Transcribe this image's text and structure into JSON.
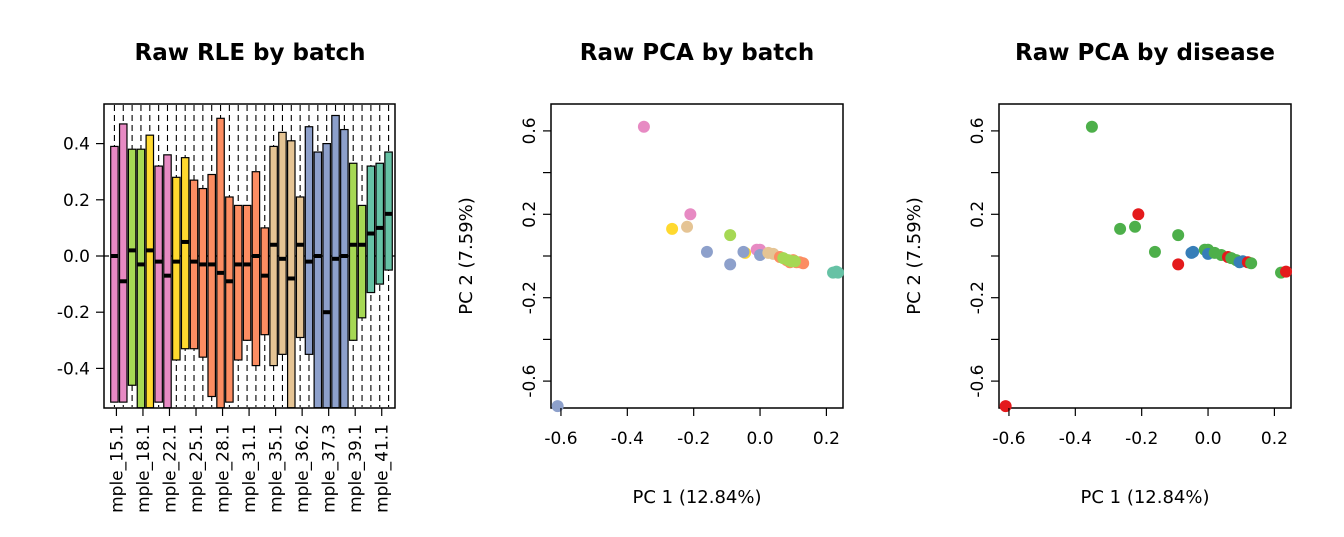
{
  "palette": {
    "rle": [
      "#E78AC3",
      "#A6D854",
      "#FFD92F",
      "#E78AC3",
      "#FFD92F",
      "#FC8D62",
      "#FC8D62",
      "#E5C494",
      "#8DA0CB",
      "#A6D854",
      "#66C2A5"
    ],
    "batch": {
      "pink": "#E78AC3",
      "yellow": "#FFD92F",
      "tan": "#E5C494",
      "blue": "#8DA0CB",
      "green": "#A6D854",
      "orange": "#FC8D62",
      "teal": "#66C2A5"
    },
    "disease": {
      "green": "#4DAF4A",
      "red": "#E41A1C",
      "blue": "#377EB8"
    }
  },
  "chart_data": [
    {
      "type": "boxplot",
      "title": "Raw RLE by batch",
      "xlabel": "",
      "ylabel": "",
      "ylim": [
        -0.54,
        0.54
      ],
      "yticks": [
        "-0.4",
        "-0.2",
        "0.0",
        "0.2",
        "0.4"
      ],
      "ytick_values": [
        -0.4,
        -0.2,
        0.0,
        0.2,
        0.4
      ],
      "reference_line": 0,
      "xtick_labels": [
        "mple_15.1",
        "mple_18.1",
        "mple_22.1",
        "mple_25.1",
        "mple_28.1",
        "mple_31.1",
        "mple_35.1",
        "mple_36.2",
        "mple_37.3",
        "mple_39.1",
        "mple_41.1"
      ],
      "boxes": [
        {
          "lo": -0.52,
          "hi": 0.39,
          "med": 0.0,
          "color": 0
        },
        {
          "lo": -0.52,
          "hi": 0.47,
          "med": -0.09,
          "color": 0
        },
        {
          "lo": -0.46,
          "hi": 0.38,
          "med": 0.02,
          "color": 1
        },
        {
          "lo": -0.54,
          "hi": 0.38,
          "med": -0.03,
          "color": 1
        },
        {
          "lo": -0.54,
          "hi": 0.43,
          "med": 0.02,
          "color": 2
        },
        {
          "lo": -0.52,
          "hi": 0.32,
          "med": -0.02,
          "color": 3
        },
        {
          "lo": -0.54,
          "hi": 0.36,
          "med": -0.07,
          "color": 3
        },
        {
          "lo": -0.37,
          "hi": 0.28,
          "med": -0.02,
          "color": 4
        },
        {
          "lo": -0.33,
          "hi": 0.35,
          "med": 0.05,
          "color": 4
        },
        {
          "lo": -0.33,
          "hi": 0.27,
          "med": -0.02,
          "color": 5
        },
        {
          "lo": -0.36,
          "hi": 0.24,
          "med": -0.03,
          "color": 5
        },
        {
          "lo": -0.5,
          "hi": 0.29,
          "med": -0.03,
          "color": 5
        },
        {
          "lo": -0.54,
          "hi": 0.49,
          "med": -0.06,
          "color": 6
        },
        {
          "lo": -0.52,
          "hi": 0.21,
          "med": -0.09,
          "color": 6
        },
        {
          "lo": -0.37,
          "hi": 0.18,
          "med": -0.03,
          "color": 6
        },
        {
          "lo": -0.3,
          "hi": 0.18,
          "med": -0.03,
          "color": 6
        },
        {
          "lo": -0.39,
          "hi": 0.3,
          "med": 0.0,
          "color": 6
        },
        {
          "lo": -0.28,
          "hi": 0.1,
          "med": -0.07,
          "color": 6
        },
        {
          "lo": -0.39,
          "hi": 0.39,
          "med": 0.04,
          "color": 7
        },
        {
          "lo": -0.35,
          "hi": 0.44,
          "med": -0.01,
          "color": 7
        },
        {
          "lo": -0.54,
          "hi": 0.41,
          "med": -0.08,
          "color": 7
        },
        {
          "lo": -0.29,
          "hi": 0.21,
          "med": 0.04,
          "color": 7
        },
        {
          "lo": -0.35,
          "hi": 0.46,
          "med": -0.02,
          "color": 8
        },
        {
          "lo": -0.54,
          "hi": 0.37,
          "med": 0.0,
          "color": 8
        },
        {
          "lo": -0.54,
          "hi": 0.4,
          "med": -0.2,
          "color": 8
        },
        {
          "lo": -0.54,
          "hi": 0.5,
          "med": -0.01,
          "color": 8
        },
        {
          "lo": -0.54,
          "hi": 0.45,
          "med": 0.0,
          "color": 8
        },
        {
          "lo": -0.3,
          "hi": 0.33,
          "med": 0.04,
          "color": 9
        },
        {
          "lo": -0.22,
          "hi": 0.18,
          "med": 0.04,
          "color": 9
        },
        {
          "lo": -0.13,
          "hi": 0.32,
          "med": 0.08,
          "color": 10
        },
        {
          "lo": -0.1,
          "hi": 0.33,
          "med": 0.1,
          "color": 10
        },
        {
          "lo": -0.05,
          "hi": 0.37,
          "med": 0.15,
          "color": 10
        }
      ]
    },
    {
      "type": "scatter",
      "title": "Raw PCA by batch",
      "xlabel": "PC 1 (12.84%)",
      "ylabel": "PC 2 (7.59%)",
      "xlim": [
        -0.63,
        0.25
      ],
      "ylim": [
        -0.75,
        0.67
      ],
      "xticks": [
        "-0.6",
        "-0.4",
        "-0.2",
        "0.0",
        "0.2"
      ],
      "xtick_values": [
        -0.6,
        -0.4,
        -0.2,
        0.0,
        0.2
      ],
      "yticks": [
        "-0.6",
        "-0.2",
        "0.2",
        "0.6"
      ],
      "ytick_values": [
        -0.6,
        -0.2,
        0.2,
        0.6
      ],
      "yminor": [
        -0.4,
        0.0,
        0.4
      ],
      "points": [
        {
          "x": -0.35,
          "y": 0.62,
          "c": "pink"
        },
        {
          "x": -0.21,
          "y": 0.2,
          "c": "pink"
        },
        {
          "x": -0.22,
          "y": 0.14,
          "c": "tan"
        },
        {
          "x": -0.265,
          "y": 0.13,
          "c": "yellow"
        },
        {
          "x": -0.09,
          "y": 0.1,
          "c": "green"
        },
        {
          "x": -0.16,
          "y": 0.02,
          "c": "blue"
        },
        {
          "x": -0.09,
          "y": -0.04,
          "c": "blue"
        },
        {
          "x": -0.045,
          "y": 0.015,
          "c": "yellow"
        },
        {
          "x": -0.05,
          "y": 0.02,
          "c": "blue"
        },
        {
          "x": -0.01,
          "y": 0.03,
          "c": "pink"
        },
        {
          "x": 0.0,
          "y": 0.03,
          "c": "pink"
        },
        {
          "x": 0.0,
          "y": 0.005,
          "c": "blue"
        },
        {
          "x": 0.025,
          "y": 0.015,
          "c": "tan"
        },
        {
          "x": 0.04,
          "y": 0.01,
          "c": "tan"
        },
        {
          "x": 0.06,
          "y": -0.005,
          "c": "orange"
        },
        {
          "x": 0.08,
          "y": -0.02,
          "c": "orange"
        },
        {
          "x": 0.09,
          "y": -0.03,
          "c": "orange"
        },
        {
          "x": 0.1,
          "y": -0.02,
          "c": "orange"
        },
        {
          "x": 0.11,
          "y": -0.03,
          "c": "orange"
        },
        {
          "x": 0.12,
          "y": -0.03,
          "c": "orange"
        },
        {
          "x": 0.13,
          "y": -0.035,
          "c": "orange"
        },
        {
          "x": 0.07,
          "y": -0.01,
          "c": "green"
        },
        {
          "x": 0.085,
          "y": -0.02,
          "c": "green"
        },
        {
          "x": 0.095,
          "y": -0.025,
          "c": "green"
        },
        {
          "x": 0.105,
          "y": -0.025,
          "c": "green"
        },
        {
          "x": 0.22,
          "y": -0.08,
          "c": "teal"
        },
        {
          "x": 0.23,
          "y": -0.075,
          "c": "teal"
        },
        {
          "x": 0.235,
          "y": -0.08,
          "c": "teal"
        },
        {
          "x": -0.61,
          "y": -0.72,
          "c": "blue"
        }
      ]
    },
    {
      "type": "scatter",
      "title": "Raw PCA by disease",
      "xlabel": "PC 1 (12.84%)",
      "ylabel": "PC 2 (7.59%)",
      "xlim": [
        -0.63,
        0.25
      ],
      "ylim": [
        -0.75,
        0.67
      ],
      "xticks": [
        "-0.6",
        "-0.4",
        "-0.2",
        "0.0",
        "0.2"
      ],
      "xtick_values": [
        -0.6,
        -0.4,
        -0.2,
        0.0,
        0.2
      ],
      "yticks": [
        "-0.6",
        "-0.2",
        "0.2",
        "0.6"
      ],
      "ytick_values": [
        -0.6,
        -0.2,
        0.2,
        0.6
      ],
      "yminor": [
        -0.4,
        0.0,
        0.4
      ],
      "points": [
        {
          "x": -0.35,
          "y": 0.62,
          "c": "green"
        },
        {
          "x": -0.21,
          "y": 0.2,
          "c": "red"
        },
        {
          "x": -0.22,
          "y": 0.14,
          "c": "green"
        },
        {
          "x": -0.265,
          "y": 0.13,
          "c": "green"
        },
        {
          "x": -0.09,
          "y": 0.1,
          "c": "green"
        },
        {
          "x": -0.16,
          "y": 0.02,
          "c": "green"
        },
        {
          "x": -0.09,
          "y": -0.04,
          "c": "red"
        },
        {
          "x": -0.05,
          "y": 0.015,
          "c": "blue"
        },
        {
          "x": -0.045,
          "y": 0.02,
          "c": "blue"
        },
        {
          "x": -0.01,
          "y": 0.03,
          "c": "green"
        },
        {
          "x": 0.0,
          "y": 0.03,
          "c": "green"
        },
        {
          "x": 0.0,
          "y": 0.01,
          "c": "blue"
        },
        {
          "x": 0.02,
          "y": 0.015,
          "c": "green"
        },
        {
          "x": 0.04,
          "y": 0.005,
          "c": "green"
        },
        {
          "x": 0.06,
          "y": -0.005,
          "c": "red"
        },
        {
          "x": 0.07,
          "y": -0.01,
          "c": "green"
        },
        {
          "x": 0.085,
          "y": -0.02,
          "c": "green"
        },
        {
          "x": 0.095,
          "y": -0.03,
          "c": "blue"
        },
        {
          "x": 0.105,
          "y": -0.025,
          "c": "blue"
        },
        {
          "x": 0.12,
          "y": -0.03,
          "c": "red"
        },
        {
          "x": 0.13,
          "y": -0.035,
          "c": "green"
        },
        {
          "x": 0.22,
          "y": -0.08,
          "c": "green"
        },
        {
          "x": 0.235,
          "y": -0.075,
          "c": "red"
        },
        {
          "x": -0.61,
          "y": -0.72,
          "c": "red"
        }
      ]
    }
  ]
}
